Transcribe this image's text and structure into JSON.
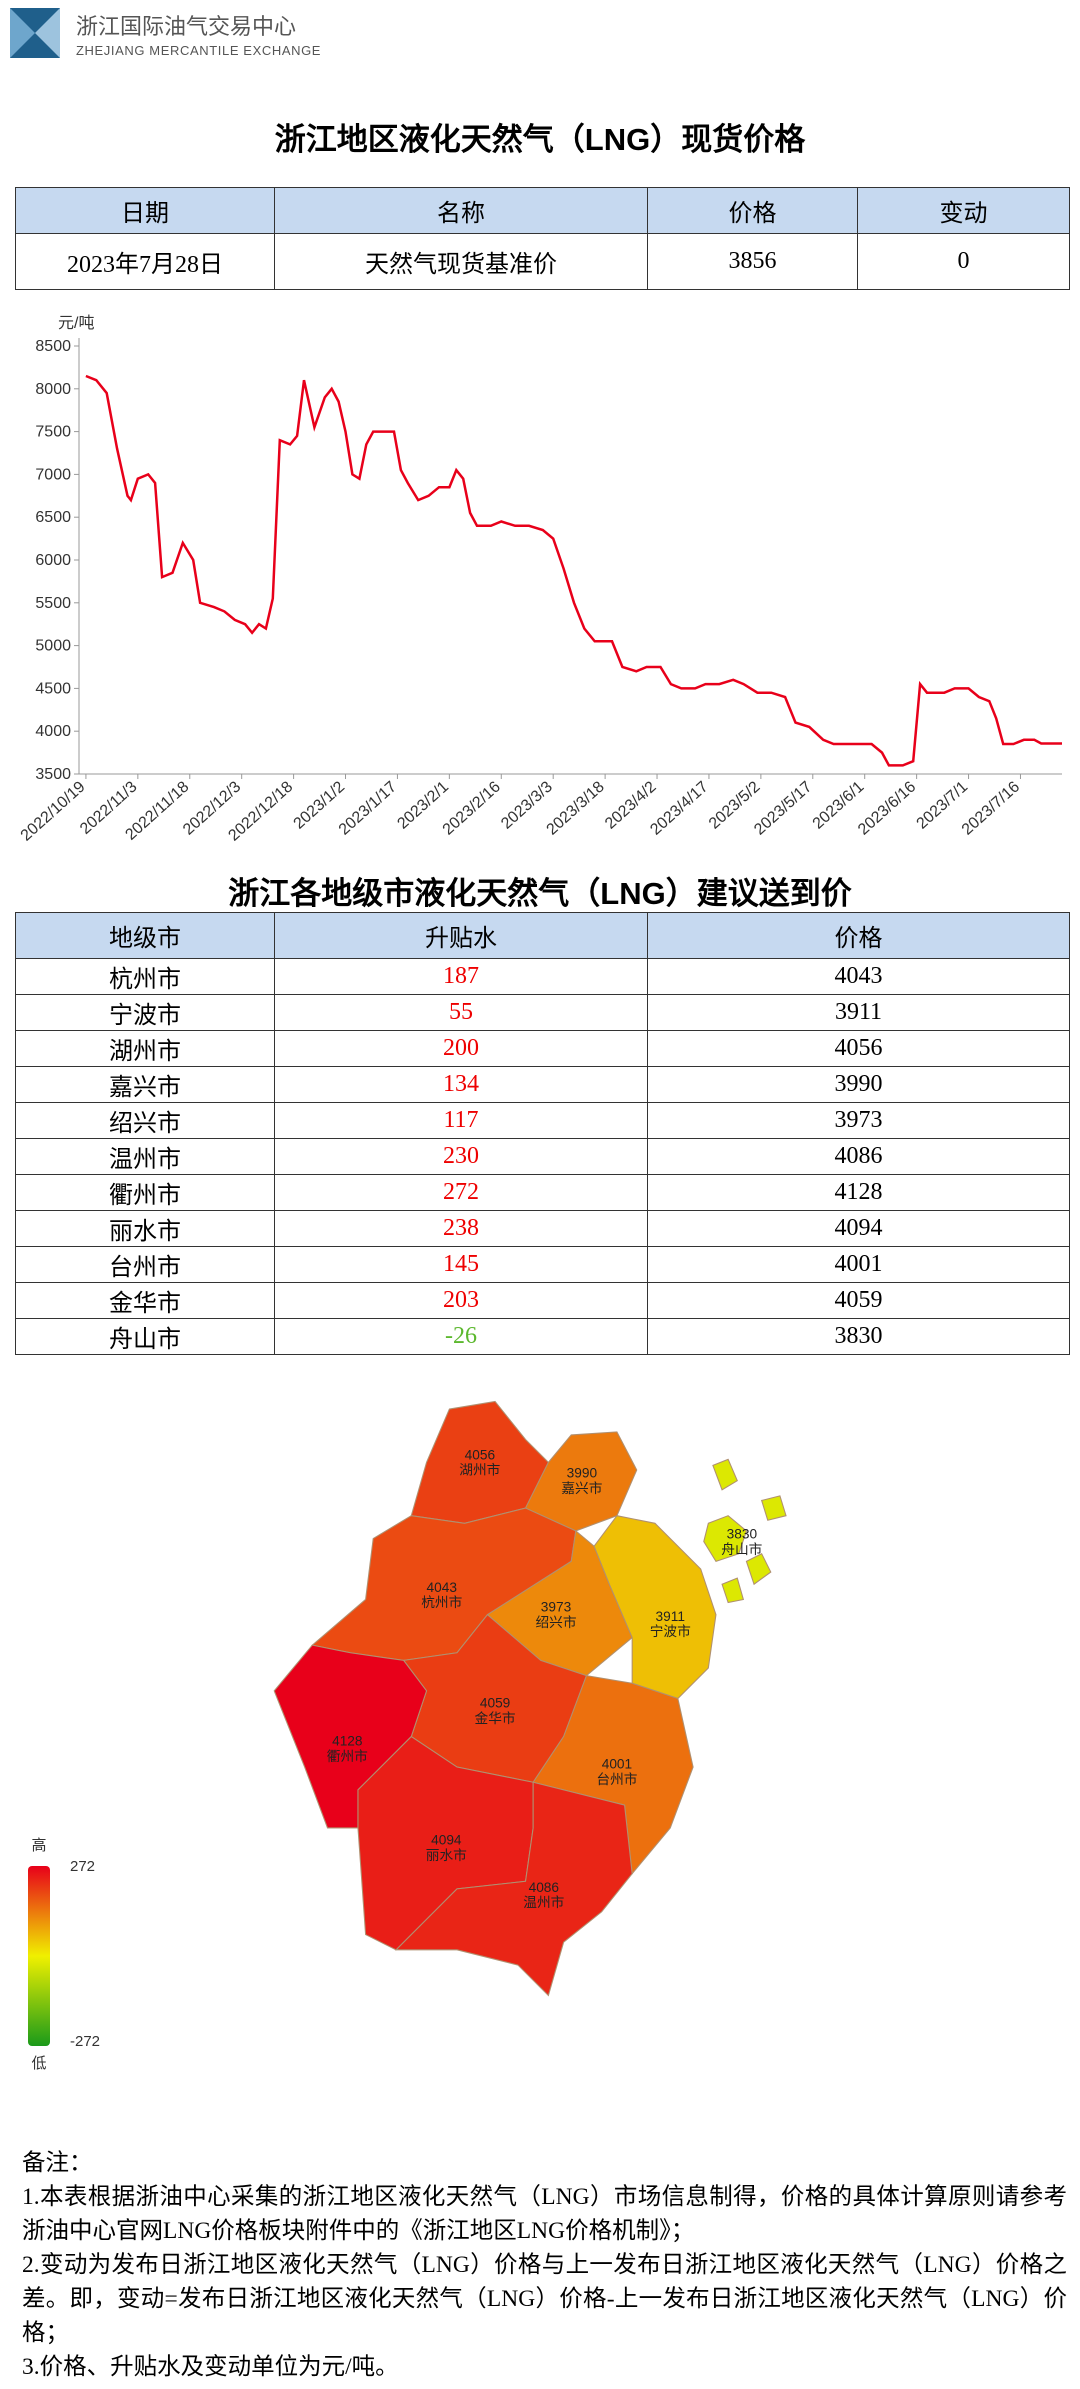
{
  "header": {
    "name": "浙江国际油气交易中心",
    "name_en": "ZHEJIANG MERCANTILE EXCHANGE"
  },
  "title": "浙江地区液化天然气（LNG）现货价格",
  "table1": {
    "columns": [
      "日期",
      "名称",
      "价格",
      "变动"
    ],
    "rows": [
      [
        "2023年7月28日",
        "天然气现货基准价",
        3856,
        0
      ]
    ]
  },
  "chart_data": {
    "type": "line",
    "y_label": "元/吨",
    "color": "#e8001a",
    "grid": false,
    "x": [
      "2022/10/19",
      "2022/10/22",
      "2022/10/25",
      "2022/10/28",
      "2022/10/31",
      "2022/11/1",
      "2022/11/3",
      "2022/11/6",
      "2022/11/8",
      "2022/11/10",
      "2022/11/13",
      "2022/11/16",
      "2022/11/19",
      "2022/11/21",
      "2022/11/25",
      "2022/11/28",
      "2022/12/1",
      "2022/12/4",
      "2022/12/6",
      "2022/12/8",
      "2022/12/10",
      "2022/12/12",
      "2022/12/14",
      "2022/12/17",
      "2022/12/19",
      "2022/12/21",
      "2022/12/24",
      "2022/12/27",
      "2022/12/29",
      "2022/12/31",
      "2023/1/2",
      "2023/1/4",
      "2023/1/6",
      "2023/1/8",
      "2023/1/10",
      "2023/1/14",
      "2023/1/16",
      "2023/1/18",
      "2023/1/20",
      "2023/1/23",
      "2023/1/26",
      "2023/1/29",
      "2023/2/1",
      "2023/2/3",
      "2023/2/5",
      "2023/2/7",
      "2023/2/9",
      "2023/2/13",
      "2023/2/16",
      "2023/2/20",
      "2023/2/24",
      "2023/2/28",
      "2023/3/3",
      "2023/3/6",
      "2023/3/9",
      "2023/3/12",
      "2023/3/15",
      "2023/3/20",
      "2023/3/23",
      "2023/3/27",
      "2023/3/30",
      "2023/4/3",
      "2023/4/6",
      "2023/4/9",
      "2023/4/13",
      "2023/4/16",
      "2023/4/20",
      "2023/4/24",
      "2023/4/27",
      "2023/5/1",
      "2023/5/5",
      "2023/5/9",
      "2023/5/12",
      "2023/5/16",
      "2023/5/20",
      "2023/5/23",
      "2023/5/28",
      "2023/6/3",
      "2023/6/6",
      "2023/6/8",
      "2023/6/12",
      "2023/6/15",
      "2023/6/17",
      "2023/6/19",
      "2023/6/24",
      "2023/6/27",
      "2023/7/1",
      "2023/7/4",
      "2023/7/7",
      "2023/7/9",
      "2023/7/11",
      "2023/7/14",
      "2023/7/17",
      "2023/7/20",
      "2023/7/22",
      "2023/7/28"
    ],
    "values": [
      8150,
      8100,
      7950,
      7300,
      6750,
      6700,
      6950,
      7000,
      6900,
      5800,
      5850,
      6200,
      6000,
      5500,
      5450,
      5400,
      5300,
      5250,
      5150,
      5250,
      5200,
      5550,
      7400,
      7350,
      7450,
      8100,
      7550,
      7900,
      8000,
      7850,
      7500,
      7000,
      6950,
      7350,
      7500,
      7500,
      7500,
      7050,
      6900,
      6700,
      6750,
      6850,
      6850,
      7050,
      6950,
      6550,
      6400,
      6400,
      6450,
      6400,
      6400,
      6350,
      6250,
      5900,
      5500,
      5200,
      5050,
      5050,
      4750,
      4700,
      4750,
      4750,
      4550,
      4500,
      4500,
      4550,
      4550,
      4600,
      4550,
      4450,
      4450,
      4400,
      4100,
      4050,
      3900,
      3850,
      3850,
      3850,
      3750,
      3600,
      3600,
      3650,
      4550,
      4450,
      4450,
      4500,
      4500,
      4400,
      4350,
      4150,
      3850,
      3850,
      3900,
      3900,
      3856,
      3856
    ],
    "xlim": [
      "2022/10/17",
      "2023/7/28"
    ],
    "xticks": [
      "2022/10/19",
      "2022/11/3",
      "2022/11/18",
      "2022/12/3",
      "2022/12/18",
      "2023/1/2",
      "2023/1/17",
      "2023/2/1",
      "2023/2/16",
      "2023/3/3",
      "2023/3/18",
      "2023/4/2",
      "2023/4/17",
      "2023/5/2",
      "2023/5/17",
      "2023/6/1",
      "2023/6/16",
      "2023/7/1",
      "2023/7/16"
    ],
    "ylim": [
      3500,
      8500
    ],
    "yticks": [
      3500,
      4000,
      4500,
      5000,
      5500,
      6000,
      6500,
      7000,
      7500,
      8000,
      8500
    ]
  },
  "title2": "浙江各地级市液化天然气（LNG）建议送到价",
  "table2": {
    "columns": [
      "地级市",
      "升贴水",
      "价格"
    ],
    "rows": [
      [
        "杭州市",
        187,
        4043
      ],
      [
        "宁波市",
        55,
        3911
      ],
      [
        "湖州市",
        200,
        4056
      ],
      [
        "嘉兴市",
        134,
        3990
      ],
      [
        "绍兴市",
        117,
        3973
      ],
      [
        "温州市",
        230,
        4086
      ],
      [
        "衢州市",
        272,
        4128
      ],
      [
        "丽水市",
        238,
        4094
      ],
      [
        "台州市",
        145,
        4001
      ],
      [
        "金华市",
        203,
        4059
      ],
      [
        "舟山市",
        -26,
        3830
      ]
    ]
  },
  "legend": {
    "high": "高",
    "low": "低",
    "max": 272,
    "min": -272
  },
  "notes": {
    "title": "备注：",
    "items": [
      "1.本表根据浙油中心采集的浙江地区液化天然气（LNG）市场信息制得，价格的具体计算原则请参考浙油中心官网LNG价格板块附件中的《浙江地区LNG价格机制》；",
      "2.变动为发布日浙江地区液化天然气（LNG）价格与上一发布日浙江地区液化天然气（LNG）价格之差。即，变动=发布日浙江地区液化天然气（LNG）价格-上一发布日浙江地区液化天然气（LNG）价格；",
      "3.价格、升贴水及变动单位为元/吨。"
    ]
  }
}
